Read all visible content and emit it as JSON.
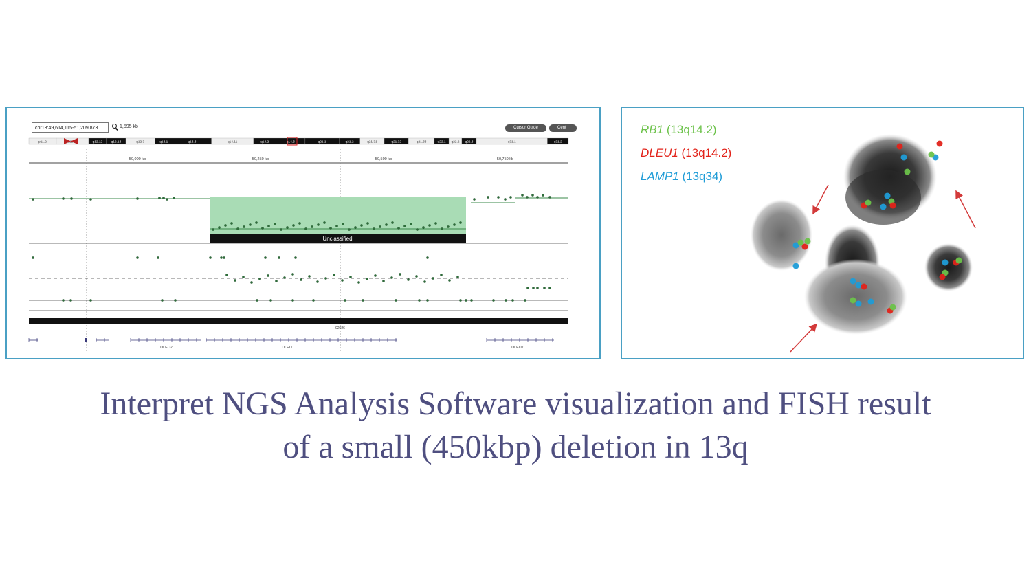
{
  "ngs": {
    "locus": "chr13:49,614,115-51,209,873",
    "zoom": "1,595 kb",
    "buttons": {
      "cursor_guide": "Cursor Guide",
      "center": "Cent"
    },
    "bands": [
      "p11.2",
      "q12.11",
      "q12.12",
      "q12.13",
      "q12.3",
      "q13.1",
      "q13.3",
      "q14.11",
      "q14.2",
      "q14.3",
      "q21.1",
      "q21.2",
      "q21.31",
      "q21.32",
      "q21.33",
      "q22.1",
      "q22.2",
      "q22.3",
      "q31.1",
      "q31.2"
    ],
    "scale_ticks": [
      "50,000 kb",
      "50,250 kb",
      "50,500 kb",
      "50,750 kb"
    ],
    "segment_label": "Unclassified",
    "track_label": "02026",
    "genes": [
      "DLEU2",
      "DLEU1",
      "DLEU7"
    ]
  },
  "fish": {
    "probes": [
      {
        "gene": "RB1",
        "locus": "(13q14.2)",
        "color": "#6cc24a"
      },
      {
        "gene": "DLEU1",
        "locus": "(13q14.2)",
        "color": "#e2231a"
      },
      {
        "gene": "LAMP1",
        "locus": "(13q34)",
        "color": "#1f9cd7"
      }
    ]
  },
  "title": {
    "line1": "Interpret NGS Analysis Software visualization and FISH result",
    "line2": "of a small (450kbp) deletion in 13q"
  }
}
